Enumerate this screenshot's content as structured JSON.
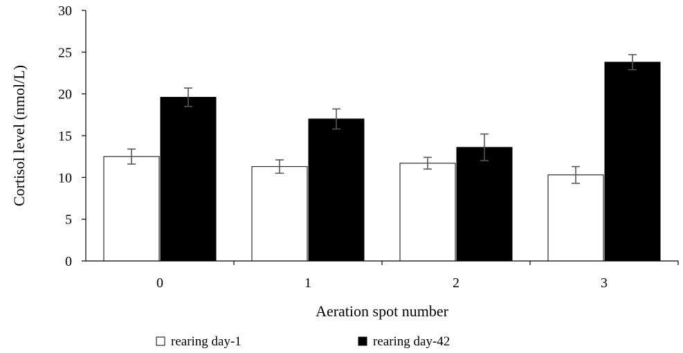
{
  "chart_data": {
    "type": "bar",
    "title": "",
    "xlabel": "Aeration spot number",
    "ylabel": "Cortisol level (nmol/L)",
    "categories": [
      "0",
      "1",
      "2",
      "3"
    ],
    "ylim": [
      0,
      30
    ],
    "yticks": [
      0,
      5,
      10,
      15,
      20,
      25,
      30
    ],
    "grid": false,
    "legend_position": "bottom",
    "series": [
      {
        "name": "rearing day-1",
        "color": "#ffffff",
        "values": [
          12.5,
          11.3,
          11.7,
          10.3
        ],
        "errors": [
          0.9,
          0.8,
          0.7,
          1.0
        ]
      },
      {
        "name": "rearing day-42",
        "color": "#000000",
        "values": [
          19.6,
          17.0,
          13.6,
          23.8
        ],
        "errors": [
          1.1,
          1.2,
          1.6,
          0.9
        ]
      }
    ]
  }
}
